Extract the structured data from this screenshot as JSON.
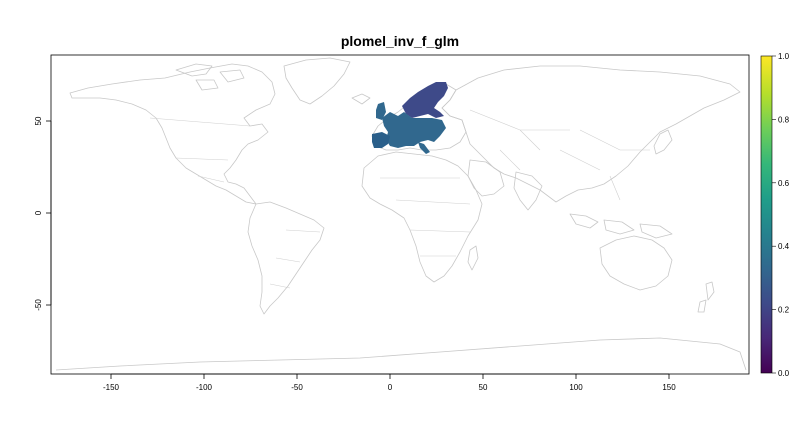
{
  "map": {
    "title": "plomel_inv_f_glm",
    "x_ticks": [
      "-150",
      "-100",
      "-50",
      "0",
      "50",
      "100",
      "150"
    ],
    "y_ticks": [
      "50",
      "0",
      "-50"
    ]
  },
  "legend": {
    "ticks": [
      "1.0",
      "0.8",
      "0.6",
      "0.4",
      "0.2",
      "0.0"
    ],
    "colors": [
      "#440154",
      "#482878",
      "#3e4a89",
      "#31688e",
      "#26828e",
      "#1f9e89",
      "#35b779",
      "#6ece58",
      "#b5de2b",
      "#fde725"
    ]
  },
  "raster": {
    "scandinavia_color": "#3e4a89",
    "europe_color": "#31688e"
  }
}
